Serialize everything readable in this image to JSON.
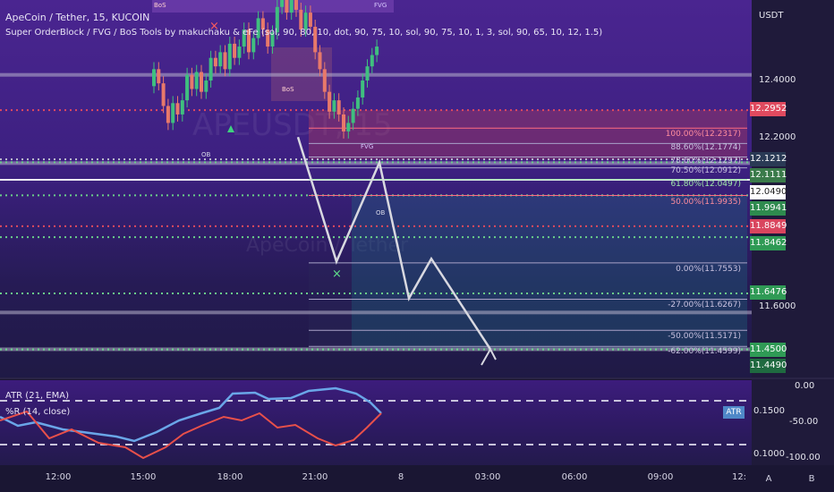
{
  "header": {
    "title": "ApeCoin / Tether, 15, KUCOIN",
    "indicator": "Super OrderBlock / FVG / BoS Tools by makuchaku & eFe (sol, 90, 80, 10, dot, 90, 75, 10, sol, 90, 75, 10, 1, 3, sol, 90, 65, 10, 12, 1.5)"
  },
  "currency": "USDT",
  "watermark": {
    "main": "APEUSDT, 15",
    "sub": "ApeCoin / Tether"
  },
  "price_axis": [
    "12.4000",
    "12.2000",
    "11.6000"
  ],
  "price_tags": [
    {
      "value": "12.2952",
      "color": "#e04a5f"
    },
    {
      "value": "12.1212",
      "color": "#2a3a55"
    },
    {
      "value": "12.1111",
      "color": "#3a7a4a"
    },
    {
      "value": "12.0490",
      "color": "#ffffff"
    },
    {
      "value": "11.9941",
      "color": "#2e8a4e"
    },
    {
      "value": "11.8849",
      "color": "#d9455e"
    },
    {
      "value": "11.8462",
      "color": "#2f9a55"
    },
    {
      "value": "11.6476",
      "color": "#2f9a55"
    },
    {
      "value": "11.4500",
      "color": "#2f9a55"
    },
    {
      "value": "11.4490",
      "color": "#1f6a40"
    }
  ],
  "fib_levels": [
    {
      "label": "100.00%(12.2317)"
    },
    {
      "label": "88.60%(12.1774)"
    },
    {
      "label": "78.60%(12.1297)"
    },
    {
      "label": "70.50%(12.0912)"
    },
    {
      "label": "61.80%(12.0497)"
    },
    {
      "label": "50.00%(11.9935)"
    },
    {
      "label": "0.00%(11.7553)"
    },
    {
      "label": "-27.00%(11.6267)"
    },
    {
      "label": "-50.00%(11.5171)"
    },
    {
      "label": "-62.00%(11.4599)"
    }
  ],
  "annotations": {
    "bos1": "BoS",
    "bos2": "BoS",
    "fvg": "FVG",
    "fvg2": "FVG",
    "ob": "OB",
    "ob2": "OB"
  },
  "indicator_panel": {
    "atr_label": "ATR (21, EMA)",
    "wr_label": "%R (14, close)",
    "atr_tag": "ATR",
    "atr_value": "0.1500",
    "atr_low": "0.1000",
    "wr_axis": [
      "0.00",
      "-50.00",
      "-100.00"
    ]
  },
  "time_axis": [
    "12:00",
    "15:00",
    "18:00",
    "21:00",
    "8",
    "03:00",
    "06:00",
    "09:00",
    "12:"
  ],
  "buttons": {
    "auto": "A",
    "log": "B"
  },
  "chart_data": {
    "type": "candlestick",
    "title": "ApeCoin / Tether, 15, KUCOIN",
    "ylabel": "USDT",
    "ylim": [
      11.42,
      12.5
    ],
    "xlabel": "",
    "x_ticks": [
      "12:00",
      "15:00",
      "18:00",
      "21:00",
      "8",
      "03:00",
      "06:00",
      "09:00",
      "12:"
    ],
    "y_ticks": [
      12.4,
      12.2,
      11.6
    ],
    "horizontal_levels": [
      12.2952,
      12.1212,
      12.1111,
      12.049,
      11.9941,
      11.8849,
      11.8462,
      11.6476,
      11.45,
      11.449
    ],
    "fib_retracement": [
      {
        "pct": 100.0,
        "price": 12.2317
      },
      {
        "pct": 88.6,
        "price": 12.1774
      },
      {
        "pct": 78.6,
        "price": 12.1297
      },
      {
        "pct": 70.5,
        "price": 12.0912
      },
      {
        "pct": 61.8,
        "price": 12.0497
      },
      {
        "pct": 50.0,
        "price": 11.9935
      },
      {
        "pct": 0.0,
        "price": 11.7553
      },
      {
        "pct": -27.0,
        "price": 11.6267
      },
      {
        "pct": -50.0,
        "price": 11.5171
      },
      {
        "pct": -62.0,
        "price": 11.4599
      }
    ],
    "projection_path": [
      12.2,
      11.76,
      12.11,
      11.63,
      11.77,
      11.45
    ],
    "indicators": {
      "atr_ylim": [
        0.1,
        0.18
      ],
      "williams_r_ylim": [
        -100,
        0
      ]
    }
  }
}
